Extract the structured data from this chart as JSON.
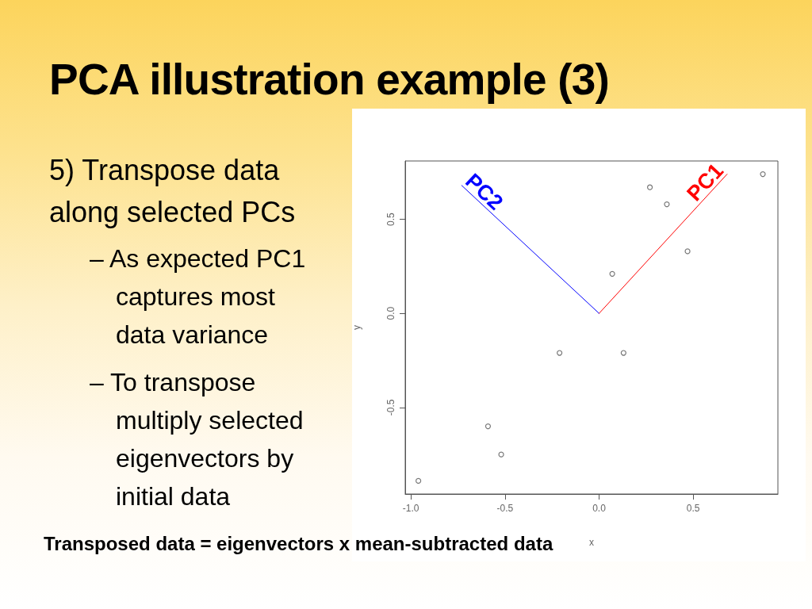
{
  "chart_data": {
    "type": "scatter",
    "title": "PCA illustration example (3)",
    "annotations": [
      "5) Transpose data along selected PCs",
      "– As expected PC1 captures most data variance",
      "– To transpose multiply selected eigenvectors by initial data",
      "Transposed data = eigenvectors x mean-subtracted data"
    ],
    "xlabel": "x",
    "ylabel": "y",
    "xlim": [
      -1.03,
      0.95
    ],
    "ylim": [
      -0.96,
      0.81
    ],
    "xticks": [
      {
        "value": -1,
        "label": "-1.0"
      },
      -0.5,
      {
        "value": 0,
        "label": "0.0"
      },
      0.5
    ],
    "yticks": [
      -0.5,
      {
        "value": 0,
        "label": "0.0"
      },
      0.5
    ],
    "marker": "circle",
    "series": [
      {
        "color": "#555555",
        "x": [
          -0.96,
          -0.59,
          -0.52,
          -0.21,
          0.07,
          0.13,
          0.27,
          0.36,
          0.47,
          0.87
        ],
        "values": [
          -0.89,
          -0.6,
          -0.75,
          -0.21,
          0.21,
          -0.21,
          0.67,
          0.58,
          0.33,
          0.74
        ]
      },
      {
        "type": "line",
        "name": "PC1",
        "color": "#ff0000",
        "marker": "none",
        "x": [
          0,
          0.68
        ],
        "values": [
          0,
          0.74
        ]
      },
      {
        "type": "line",
        "name": "PC2",
        "color": "#0000ff",
        "marker": "none",
        "x": [
          0,
          -0.73
        ],
        "values": [
          0,
          0.68
        ]
      }
    ]
  }
}
